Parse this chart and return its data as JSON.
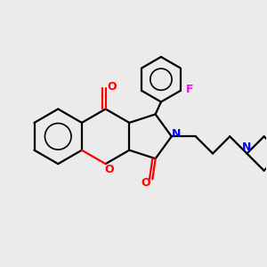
{
  "bg": "#ebebeb",
  "bc": "#000000",
  "Nc": "#0000ff",
  "Oc": "#ff0000",
  "Fc": "#ff00ff",
  "lw": 1.6,
  "dbo": 0.03,
  "figsize": [
    3.0,
    3.0
  ],
  "dpi": 100,
  "xlim": [
    -1.2,
    1.5
  ],
  "ylim": [
    -1.1,
    1.2
  ]
}
